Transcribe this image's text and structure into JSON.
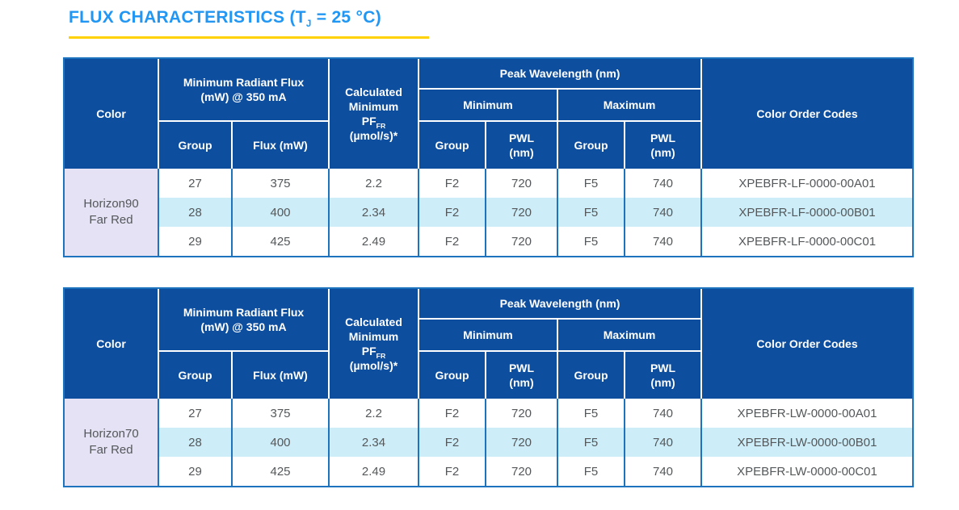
{
  "title": {
    "prefix": "FLUX CHARACTERISTICS (T",
    "subscript": "J",
    "suffix": " = 25 °C)"
  },
  "colors": {
    "title_blue": "#2196f3",
    "underline_yellow": "#ffd100",
    "header_blue": "#0d4e9f",
    "grid_blue": "#1e73be",
    "row_alt_cyan": "#cdeef9",
    "color_cell_lavender": "#e4e2f4",
    "body_text_gray": "#54585a"
  },
  "table_header": {
    "color": "Color",
    "min_radiant_flux": "Minimum Radiant Flux\n(mW) @ 350 mA",
    "group": "Group",
    "flux_mw": "Flux (mW)",
    "calculated_top": "Calculated\nMinimum",
    "calculated_pf": "PF",
    "calculated_pf_sub": "FR",
    "calculated_units": "(µmol/s)*",
    "peak_wavelength": "Peak Wavelength (nm)",
    "minimum": "Minimum",
    "maximum": "Maximum",
    "pwl_nm": "PWL\n(nm)",
    "color_order_codes": "Color Order Codes"
  },
  "tables": [
    {
      "color_name": "Horizon90\nFar Red",
      "rows": [
        {
          "group": "27",
          "flux": "375",
          "pf": "2.2",
          "min_group": "F2",
          "min_pwl": "720",
          "max_group": "F5",
          "max_pwl": "740",
          "code": "XPEBFR-LF-0000-00A01"
        },
        {
          "group": "28",
          "flux": "400",
          "pf": "2.34",
          "min_group": "F2",
          "min_pwl": "720",
          "max_group": "F5",
          "max_pwl": "740",
          "code": "XPEBFR-LF-0000-00B01"
        },
        {
          "group": "29",
          "flux": "425",
          "pf": "2.49",
          "min_group": "F2",
          "min_pwl": "720",
          "max_group": "F5",
          "max_pwl": "740",
          "code": "XPEBFR-LF-0000-00C01"
        }
      ]
    },
    {
      "color_name": "Horizon70\nFar Red",
      "rows": [
        {
          "group": "27",
          "flux": "375",
          "pf": "2.2",
          "min_group": "F2",
          "min_pwl": "720",
          "max_group": "F5",
          "max_pwl": "740",
          "code": "XPEBFR-LW-0000-00A01"
        },
        {
          "group": "28",
          "flux": "400",
          "pf": "2.34",
          "min_group": "F2",
          "min_pwl": "720",
          "max_group": "F5",
          "max_pwl": "740",
          "code": "XPEBFR-LW-0000-00B01"
        },
        {
          "group": "29",
          "flux": "425",
          "pf": "2.49",
          "min_group": "F2",
          "min_pwl": "720",
          "max_group": "F5",
          "max_pwl": "740",
          "code": "XPEBFR-LW-0000-00C01"
        }
      ]
    }
  ]
}
